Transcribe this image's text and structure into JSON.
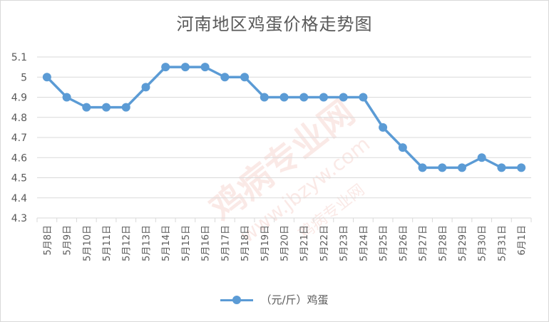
{
  "chart_data": {
    "type": "line",
    "title": "河南地区鸡蛋价格走势图",
    "categories": [
      "5月8日",
      "5月9日",
      "5月10日",
      "5月11日",
      "5月12日",
      "5月13日",
      "5月14日",
      "5月15日",
      "5月16日",
      "5月17日",
      "5月18日",
      "5月19日",
      "5月20日",
      "5月21日",
      "5月22日",
      "5月23日",
      "5月24日",
      "5月25日",
      "5月26日",
      "5月27日",
      "5月28日",
      "5月29日",
      "5月30日",
      "5月31日",
      "6月1日"
    ],
    "series": [
      {
        "name": "（元/斤）鸡蛋",
        "values": [
          5.0,
          4.9,
          4.85,
          4.85,
          4.85,
          4.95,
          5.05,
          5.05,
          5.05,
          5.0,
          5.0,
          4.9,
          4.9,
          4.9,
          4.9,
          4.9,
          4.9,
          4.75,
          4.65,
          4.55,
          4.55,
          4.55,
          4.6,
          4.55,
          4.55
        ],
        "color": "#5b9bd5"
      }
    ],
    "ylim": [
      4.3,
      5.1
    ],
    "yticks": [
      "4.3",
      "4.4",
      "4.5",
      "4.6",
      "4.7",
      "4.8",
      "4.9",
      "5",
      "5.1"
    ],
    "grid": true,
    "legend_position": "bottom",
    "colors": {
      "grid": "#d9d9d9",
      "axis_text": "#595959",
      "line": "#5b9bd5"
    }
  },
  "watermark": {
    "text_cn": "鸡病专业网",
    "text_url": "www.jbzyw.com",
    "text_small": "鸡病专业网"
  }
}
